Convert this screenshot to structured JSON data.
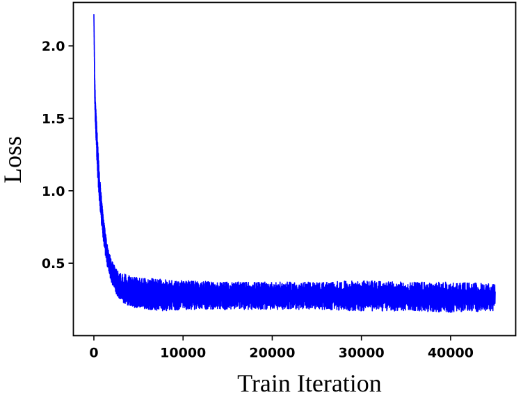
{
  "chart_data": {
    "type": "line",
    "title": "",
    "xlabel": "Train Iteration",
    "ylabel": "Loss",
    "xlim": [
      -2300,
      47300
    ],
    "ylim": [
      0.0,
      2.3
    ],
    "xticks": [
      0,
      10000,
      20000,
      30000,
      40000
    ],
    "xtick_labels": [
      "0",
      "10000",
      "20000",
      "30000",
      "40000"
    ],
    "yticks": [
      0.5,
      1.0,
      1.5,
      2.0
    ],
    "ytick_labels": [
      "0.5",
      "1.0",
      "1.5",
      "2.0"
    ],
    "grid": false,
    "legend": null,
    "colors": {
      "line": "#0000ff",
      "axes": "#000000",
      "background": "#ffffff"
    },
    "series": [
      {
        "x": [
          0,
          100,
          200,
          400,
          600,
          800,
          1000,
          1200,
          1500,
          2000,
          2500,
          3000,
          4000,
          5000,
          7500,
          10000,
          15000,
          20000,
          25000,
          30000,
          35000,
          40000,
          45000
        ],
        "y_mean": [
          2.22,
          1.7,
          1.5,
          1.25,
          1.05,
          0.9,
          0.78,
          0.68,
          0.55,
          0.43,
          0.36,
          0.32,
          0.3,
          0.29,
          0.28,
          0.28,
          0.28,
          0.275,
          0.27,
          0.27,
          0.265,
          0.265,
          0.26
        ],
        "y_min": [
          2.22,
          1.6,
          1.38,
          1.12,
          0.93,
          0.79,
          0.68,
          0.59,
          0.47,
          0.36,
          0.28,
          0.24,
          0.2,
          0.19,
          0.17,
          0.18,
          0.18,
          0.18,
          0.18,
          0.17,
          0.17,
          0.16,
          0.17
        ],
        "y_max": [
          2.22,
          1.78,
          1.6,
          1.36,
          1.15,
          0.99,
          0.86,
          0.76,
          0.63,
          0.52,
          0.46,
          0.43,
          0.42,
          0.4,
          0.39,
          0.38,
          0.37,
          0.37,
          0.37,
          0.38,
          0.37,
          0.37,
          0.36
        ]
      }
    ]
  }
}
